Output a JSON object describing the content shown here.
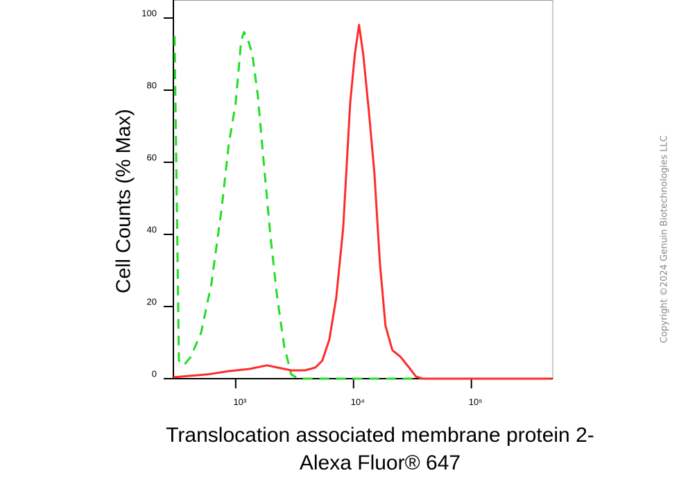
{
  "chart_data": {
    "type": "line",
    "ylabel": "Cell Counts (% Max)",
    "xlabel": [
      "Translocation associated membrane protein 2-",
      "Alexa Fluor® 647"
    ],
    "copyright": "Copyright ©2024 Genuin Biotechnologies LLC",
    "xscale": "log",
    "xlim": [
      296,
      490000
    ],
    "ylim": [
      0,
      105
    ],
    "xticks": [
      {
        "value": 1000,
        "label": "10³"
      },
      {
        "value": 10000,
        "label": "10⁴"
      },
      {
        "value": 100000,
        "label": "10⁵"
      }
    ],
    "yticks": [
      0,
      20,
      40,
      60,
      80,
      100
    ],
    "series": [
      {
        "color": "#22dd22",
        "line_style": "dashed",
        "x": [
          303,
          330,
          362,
          415,
          508,
          622,
          762,
          873,
          1000,
          1114,
          1177,
          1276,
          1384,
          1542,
          1719,
          1968,
          2254,
          2582,
          2958,
          3384,
          480000
        ],
        "values": [
          95,
          5.0,
          3.7,
          6.0,
          12.7,
          26.3,
          47.5,
          64.9,
          76.4,
          93.8,
          96.1,
          93.8,
          90.0,
          78.4,
          61.0,
          39.8,
          22.4,
          8.9,
          1.2,
          0,
          0
        ]
      },
      {
        "color": "#ff2a2a",
        "line_style": "solid",
        "x": [
          296,
          582,
          873,
          1311,
          1841,
          2254,
          2958,
          3873,
          4745,
          5430,
          6222,
          7128,
          8166,
          9355,
          10270,
          11140,
          12080,
          13460,
          15010,
          16730,
          18650,
          21340,
          25120,
          29580,
          33840,
          38730,
          480000
        ],
        "values": [
          0.4,
          1.2,
          2.1,
          2.7,
          3.7,
          3.1,
          2.3,
          2.3,
          3.1,
          5.0,
          10.8,
          22.4,
          41.7,
          76.4,
          90.0,
          98.1,
          90.0,
          74.5,
          57.1,
          32.0,
          14.7,
          7.9,
          6.0,
          3.1,
          0.6,
          0,
          0
        ]
      }
    ]
  }
}
